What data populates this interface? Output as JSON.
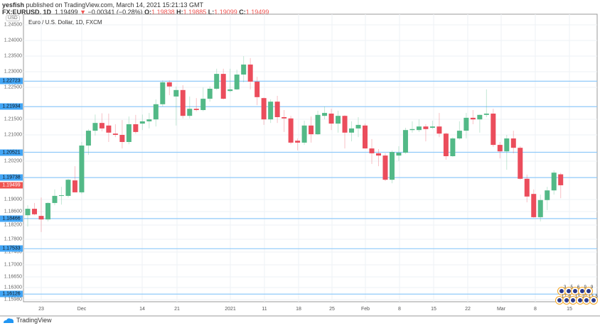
{
  "header": {
    "publisher": "yesfish",
    "published_text": "published on TradingView.com, March 14, 2021 15:21:13 GMT",
    "symbol": "FX:EURUSD, 1D",
    "last": "1.19499",
    "change": "−0.00341 (−0.28%)",
    "o_label": "O:",
    "o": "1.19838",
    "h_label": "H:",
    "h": "1.19885",
    "l_label": "L:",
    "l": "1.19099",
    "c_label": "C:",
    "c": "1.19499"
  },
  "currency": "USD",
  "chart_title": "Euro / U.S. Dollar, 1D, FXCM",
  "footer_brand": "TradingView",
  "colors": {
    "up": "#53b987",
    "down": "#eb4d5c",
    "hline": "#90caf9",
    "label": "#42a5f5"
  },
  "events": {
    "row1": [
      "3",
      "5",
      "6",
      "9",
      "9"
    ],
    "row2": [
      "17",
      "9",
      "13",
      "10",
      "13",
      "5"
    ]
  },
  "chart_data": {
    "type": "candlestick",
    "title": "Euro / U.S. Dollar, 1D, FXCM",
    "ylabel": "USD",
    "ylim": [
      1.158,
      1.248
    ],
    "y_ticks": [
      "1.24500",
      "1.24000",
      "1.23500",
      "1.23000",
      "1.22500",
      "1.21500",
      "1.21000",
      "1.20200",
      "1.19000",
      "1.18600",
      "1.18200",
      "1.17800",
      "1.17400",
      "1.17000",
      "1.16650",
      "1.16300",
      "1.15980"
    ],
    "x_ticks": [
      "23",
      "Dec",
      "14",
      "21",
      "2021",
      "11",
      "18",
      "25",
      "Feb",
      "8",
      "15",
      "22",
      "Mar",
      "8",
      "15"
    ],
    "horizontal_levels": [
      "1.22723",
      "1.21934",
      "1.20521",
      "1.19738",
      "1.18466",
      "1.17533",
      "1.16126"
    ],
    "current_price": "1.19499",
    "ohlc": [
      [
        1.1857,
        1.1888,
        1.1822,
        1.1877
      ],
      [
        1.1877,
        1.1895,
        1.1857,
        1.186
      ],
      [
        1.1855,
        1.1912,
        1.1805,
        1.1844
      ],
      [
        1.1844,
        1.1897,
        1.1838,
        1.1895
      ],
      [
        1.1895,
        1.1937,
        1.1888,
        1.1917
      ],
      [
        1.1917,
        1.1945,
        1.189,
        1.1919
      ],
      [
        1.1917,
        1.197,
        1.1912,
        1.1967
      ],
      [
        1.1965,
        1.2009,
        1.1928,
        1.1928
      ],
      [
        1.1928,
        1.2084,
        1.1923,
        1.2073
      ],
      [
        1.2073,
        1.2124,
        1.2044,
        1.2119
      ],
      [
        1.2119,
        1.2169,
        1.2104,
        1.2143
      ],
      [
        1.2143,
        1.2173,
        1.2117,
        1.2126
      ],
      [
        1.2135,
        1.2172,
        1.2084,
        1.2113
      ],
      [
        1.211,
        1.2139,
        1.2099,
        1.2106
      ],
      [
        1.2106,
        1.2152,
        1.2064,
        1.2084
      ],
      [
        1.2084,
        1.2163,
        1.2077,
        1.2139
      ],
      [
        1.2139,
        1.2168,
        1.211,
        1.2115
      ],
      [
        1.2141,
        1.2169,
        1.2121,
        1.2148
      ],
      [
        1.2148,
        1.2174,
        1.2126,
        1.2154
      ],
      [
        1.2154,
        1.2216,
        1.2132,
        1.2201
      ],
      [
        1.2201,
        1.2275,
        1.2194,
        1.2269
      ],
      [
        1.2269,
        1.2275,
        1.2229,
        1.2256
      ],
      [
        1.2225,
        1.2256,
        1.2135,
        1.2245
      ],
      [
        1.2245,
        1.226,
        1.2157,
        1.2165
      ],
      [
        1.2165,
        1.2225,
        1.2157,
        1.2187
      ],
      [
        1.2187,
        1.222,
        1.2179,
        1.2183
      ],
      [
        1.2183,
        1.2253,
        1.2179,
        1.2218
      ],
      [
        1.2218,
        1.2256,
        1.2209,
        1.2249
      ],
      [
        1.2249,
        1.2311,
        1.2245,
        1.2295
      ],
      [
        1.2295,
        1.2311,
        1.2216,
        1.2218
      ],
      [
        1.2242,
        1.2311,
        1.2238,
        1.2247
      ],
      [
        1.2247,
        1.2308,
        1.2245,
        1.2293
      ],
      [
        1.2293,
        1.235,
        1.2269,
        1.2324
      ],
      [
        1.2324,
        1.2344,
        1.2247,
        1.2271
      ],
      [
        1.2271,
        1.2286,
        1.2198,
        1.2223
      ],
      [
        1.222,
        1.2222,
        1.2137,
        1.2154
      ],
      [
        1.2154,
        1.2216,
        1.2143,
        1.2209
      ],
      [
        1.2209,
        1.2227,
        1.2143,
        1.2161
      ],
      [
        1.2161,
        1.2183,
        1.2115,
        1.2157
      ],
      [
        1.2157,
        1.2165,
        1.2077,
        1.2082
      ],
      [
        1.2088,
        1.2095,
        1.2058,
        1.2082
      ],
      [
        1.2082,
        1.215,
        1.2075,
        1.2135
      ],
      [
        1.2135,
        1.2163,
        1.2082,
        1.2108
      ],
      [
        1.2108,
        1.2181,
        1.2106,
        1.2168
      ],
      [
        1.2165,
        1.2194,
        1.2154,
        1.2174
      ],
      [
        1.2172,
        1.2187,
        1.2121,
        1.2141
      ],
      [
        1.2141,
        1.2181,
        1.2113,
        1.2165
      ],
      [
        1.2165,
        1.2167,
        1.2064,
        1.2113
      ],
      [
        1.2113,
        1.2148,
        1.2086,
        1.2126
      ],
      [
        1.2126,
        1.2161,
        1.2099,
        1.2137
      ],
      [
        1.2135,
        1.2141,
        1.2064,
        1.2064
      ],
      [
        1.2064,
        1.2093,
        1.2016,
        1.2049
      ],
      [
        1.2049,
        1.2062,
        1.2009,
        1.2042
      ],
      [
        1.2042,
        1.2049,
        1.1963,
        1.1967
      ],
      [
        1.1967,
        1.2058,
        1.1956,
        1.2053
      ],
      [
        1.2042,
        1.2071,
        1.2025,
        1.2051
      ],
      [
        1.2051,
        1.2128,
        1.2047,
        1.2121
      ],
      [
        1.2121,
        1.2148,
        1.2113,
        1.2124
      ],
      [
        1.2121,
        1.2154,
        1.2115,
        1.2132
      ],
      [
        1.2132,
        1.2139,
        1.2086,
        1.2124
      ],
      [
        1.2128,
        1.215,
        1.2124,
        1.2132
      ],
      [
        1.2132,
        1.2174,
        1.2099,
        1.211
      ],
      [
        1.211,
        1.2113,
        1.2029,
        1.204
      ],
      [
        1.204,
        1.2099,
        1.2038,
        1.2095
      ],
      [
        1.2095,
        1.2148,
        1.2091,
        1.2119
      ],
      [
        1.2119,
        1.2174,
        1.2095,
        1.2159
      ],
      [
        1.2159,
        1.2183,
        1.2139,
        1.2154
      ],
      [
        1.2154,
        1.2169,
        1.2113,
        1.2168
      ],
      [
        1.2168,
        1.2247,
        1.2161,
        1.2172
      ],
      [
        1.2172,
        1.2187,
        1.2069,
        1.2075
      ],
      [
        1.2075,
        1.2084,
        1.2033,
        1.2055
      ],
      [
        1.2055,
        1.2106,
        1.1998,
        1.2095
      ],
      [
        1.2095,
        1.2119,
        1.2049,
        1.2066
      ],
      [
        1.2066,
        1.2071,
        1.1967,
        1.197
      ],
      [
        1.197,
        1.1983,
        1.1897,
        1.1915
      ],
      [
        1.1923,
        1.1937,
        1.1849,
        1.1851
      ],
      [
        1.1851,
        1.1921,
        1.1838,
        1.1904
      ],
      [
        1.1904,
        1.1945,
        1.1873,
        1.1934
      ],
      [
        1.1934,
        1.1996,
        1.1921,
        1.1989
      ],
      [
        1.19838,
        1.19885,
        1.19099,
        1.19499
      ]
    ]
  }
}
